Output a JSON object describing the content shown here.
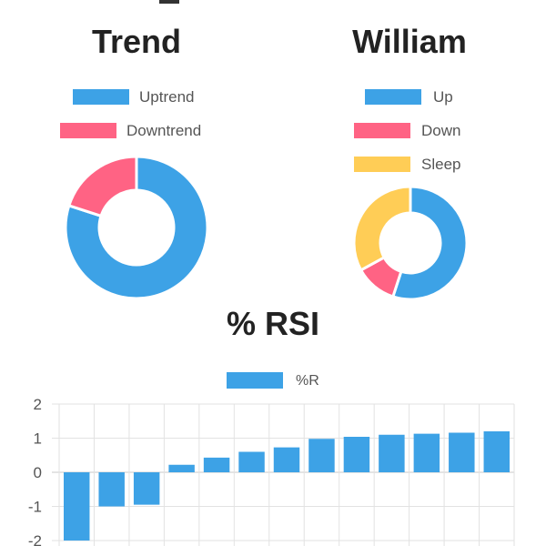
{
  "colors": {
    "blue": "#3da2e6",
    "red": "#ff6384",
    "yellow": "#ffcd56",
    "grid": "#e2e2e2",
    "text": "#555555",
    "title": "#222222"
  },
  "chart_data": [
    {
      "type": "pie",
      "variant": "doughnut",
      "title": "Trend",
      "legend_placement": "top",
      "labels": [
        "Uptrend",
        "Downtrend"
      ],
      "values": [
        80,
        20
      ],
      "colors": [
        "#3da2e6",
        "#ff6384"
      ]
    },
    {
      "type": "pie",
      "variant": "doughnut",
      "title": "William",
      "legend_placement": "top",
      "labels": [
        "Up",
        "Down",
        "Sleep"
      ],
      "values": [
        55,
        12,
        33
      ],
      "colors": [
        "#3da2e6",
        "#ff6384",
        "#ffcd56"
      ]
    },
    {
      "type": "bar",
      "title": "% RSI",
      "legend_placement": "top",
      "series": [
        {
          "name": "%R",
          "color": "#3da2e6",
          "values": [
            -2.0,
            -1.0,
            -0.95,
            0.22,
            0.43,
            0.6,
            0.73,
            0.98,
            1.04,
            1.1,
            1.13,
            1.16,
            1.2
          ]
        }
      ],
      "ylim": [
        -2,
        2
      ],
      "yticks": [
        2,
        1,
        0,
        -1,
        -2
      ],
      "grid": true
    }
  ]
}
